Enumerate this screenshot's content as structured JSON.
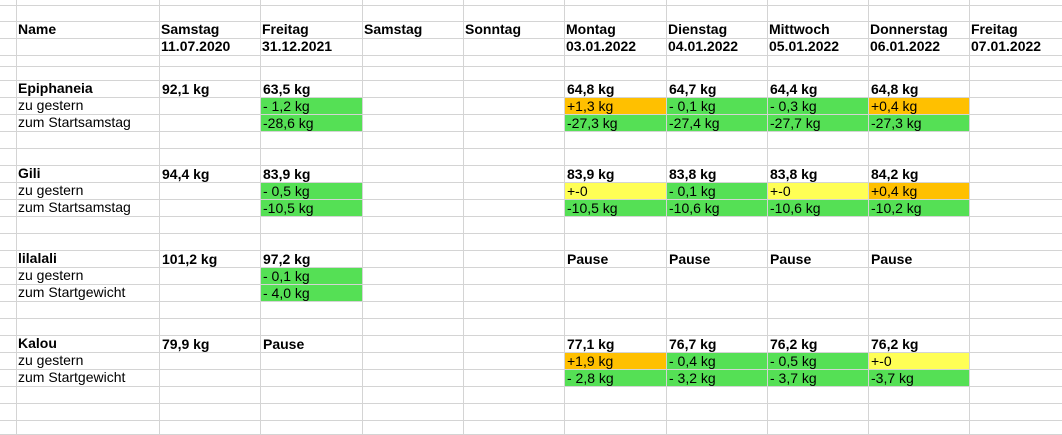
{
  "colors": {
    "green": "#55e055",
    "orange": "#ffc000",
    "yellow": "#ffff55",
    "grid": "#d4d4d4"
  },
  "header": {
    "name": "Name",
    "days": [
      "Samstag",
      "Freitag",
      "Samstag",
      "Sonntag",
      "Montag",
      "Dienstag",
      "Mittwoch",
      "Donnerstag",
      "Freitag"
    ],
    "dates": [
      "11.07.2020",
      "31.12.2021",
      "",
      "",
      "03.01.2022",
      "04.01.2022",
      "05.01.2022",
      "06.01.2022",
      "07.01.2022"
    ]
  },
  "rows": [
    {
      "label": "Epiphaneia",
      "bold": true,
      "cells": [
        {
          "c": 0,
          "t": "92,1 kg"
        },
        {
          "c": 1,
          "t": "63,5 kg"
        },
        {
          "c": 4,
          "t": "64,8 kg"
        },
        {
          "c": 5,
          "t": "64,7 kg"
        },
        {
          "c": 6,
          "t": "64,4 kg"
        },
        {
          "c": 7,
          "t": "64,8 kg"
        }
      ]
    },
    {
      "label": "zu gestern",
      "bold": false,
      "cells": [
        {
          "c": 1,
          "t": "- 1,2 kg",
          "bg": "green"
        },
        {
          "c": 4,
          "t": "+1,3 kg",
          "bg": "orange"
        },
        {
          "c": 5,
          "t": "- 0,1 kg",
          "bg": "green"
        },
        {
          "c": 6,
          "t": "- 0,3 kg",
          "bg": "green"
        },
        {
          "c": 7,
          "t": "+0,4 kg",
          "bg": "orange"
        }
      ]
    },
    {
      "label": "zum Startsamstag",
      "bold": false,
      "cells": [
        {
          "c": 1,
          "t": "-28,6 kg",
          "bg": "green"
        },
        {
          "c": 4,
          "t": "-27,3 kg",
          "bg": "green"
        },
        {
          "c": 5,
          "t": "-27,4 kg",
          "bg": "green"
        },
        {
          "c": 6,
          "t": "-27,7 kg",
          "bg": "green"
        },
        {
          "c": 7,
          "t": "-27,3 kg",
          "bg": "green"
        }
      ]
    },
    {
      "label": "",
      "bold": false,
      "cells": []
    },
    {
      "label": "Gili",
      "bold": true,
      "cells": [
        {
          "c": 0,
          "t": "94,4 kg"
        },
        {
          "c": 1,
          "t": "83,9 kg"
        },
        {
          "c": 4,
          "t": "83,9 kg"
        },
        {
          "c": 5,
          "t": "83,8 kg"
        },
        {
          "c": 6,
          "t": "83,8 kg"
        },
        {
          "c": 7,
          "t": "84,2 kg"
        }
      ]
    },
    {
      "label": "zu gestern",
      "bold": false,
      "cells": [
        {
          "c": 1,
          "t": "- 0,5 kg",
          "bg": "green"
        },
        {
          "c": 4,
          "t": "+-0",
          "bg": "yellow"
        },
        {
          "c": 5,
          "t": "- 0,1 kg",
          "bg": "green"
        },
        {
          "c": 6,
          "t": "+-0",
          "bg": "yellow"
        },
        {
          "c": 7,
          "t": "+0,4 kg",
          "bg": "orange"
        }
      ]
    },
    {
      "label": "zum Startsamstag",
      "bold": false,
      "cells": [
        {
          "c": 1,
          "t": "-10,5 kg",
          "bg": "green"
        },
        {
          "c": 4,
          "t": "-10,5 kg",
          "bg": "green"
        },
        {
          "c": 5,
          "t": "-10,6 kg",
          "bg": "green"
        },
        {
          "c": 6,
          "t": "-10,6 kg",
          "bg": "green"
        },
        {
          "c": 7,
          "t": "-10,2 kg",
          "bg": "green"
        }
      ]
    },
    {
      "label": "",
      "bold": false,
      "cells": []
    },
    {
      "label": "lilalali",
      "bold": true,
      "cells": [
        {
          "c": 0,
          "t": "101,2 kg"
        },
        {
          "c": 1,
          "t": "97,2 kg"
        },
        {
          "c": 4,
          "t": "Pause"
        },
        {
          "c": 5,
          "t": "Pause"
        },
        {
          "c": 6,
          "t": "Pause"
        },
        {
          "c": 7,
          "t": "Pause"
        }
      ]
    },
    {
      "label": "zu gestern",
      "bold": false,
      "cells": [
        {
          "c": 1,
          "t": "- 0,1 kg",
          "bg": "green"
        }
      ]
    },
    {
      "label": "zum Startgewicht",
      "bold": false,
      "cells": [
        {
          "c": 1,
          "t": "- 4,0 kg",
          "bg": "green"
        }
      ]
    },
    {
      "label": "",
      "bold": false,
      "cells": []
    },
    {
      "label": "Kalou",
      "bold": true,
      "cells": [
        {
          "c": 0,
          "t": "79,9 kg"
        },
        {
          "c": 1,
          "t": "Pause"
        },
        {
          "c": 4,
          "t": "77,1 kg"
        },
        {
          "c": 5,
          "t": "76,7 kg"
        },
        {
          "c": 6,
          "t": "76,2 kg"
        },
        {
          "c": 7,
          "t": "76,2 kg"
        }
      ]
    },
    {
      "label": "zu gestern",
      "bold": false,
      "cells": [
        {
          "c": 4,
          "t": "+1,9 kg",
          "bg": "orange"
        },
        {
          "c": 5,
          "t": "- 0,4 kg",
          "bg": "green"
        },
        {
          "c": 6,
          "t": "- 0,5 kg",
          "bg": "green"
        },
        {
          "c": 7,
          "t": "+-0",
          "bg": "yellow"
        }
      ]
    },
    {
      "label": "zum Startgewicht",
      "bold": false,
      "cells": [
        {
          "c": 4,
          "t": "- 2,8 kg",
          "bg": "green"
        },
        {
          "c": 5,
          "t": "- 3,2 kg",
          "bg": "green"
        },
        {
          "c": 6,
          "t": "- 3,7  kg",
          "bg": "green"
        },
        {
          "c": 7,
          "t": "-3,7 kg",
          "bg": "green"
        }
      ]
    }
  ]
}
